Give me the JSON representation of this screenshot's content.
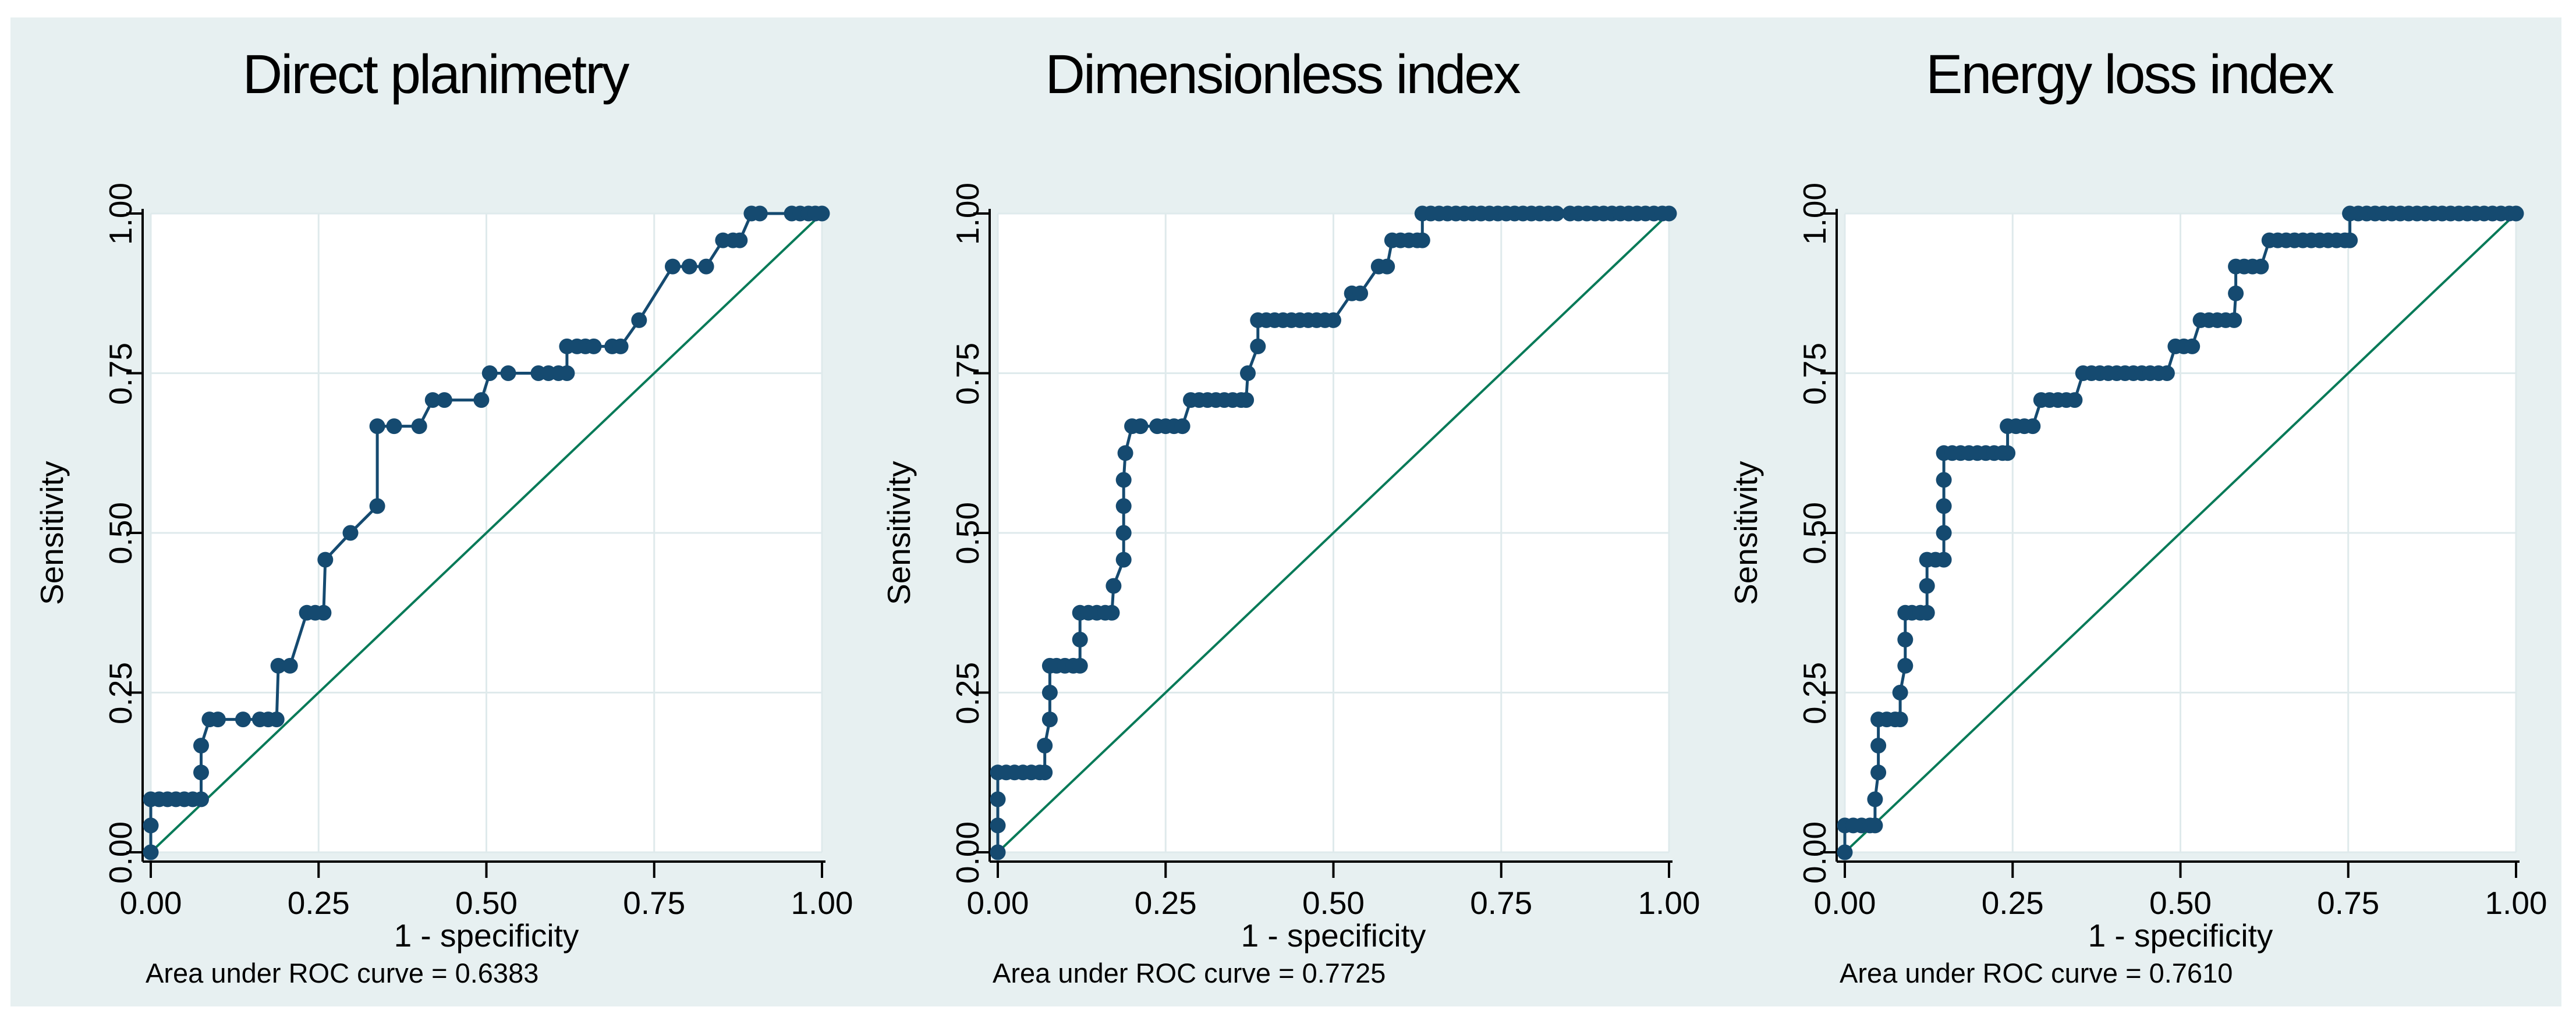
{
  "figure": {
    "page_background": "#ffffff",
    "figure_background": "#e7f0f1"
  },
  "colors": {
    "roc_curve": "#154a70",
    "reference_line": "#077a58",
    "grid": "#dfeaec",
    "axis": "#000000",
    "plot_background": "#ffffff",
    "text": "#000000"
  },
  "chart_data": [
    {
      "type": "scatter",
      "subtype": "roc-step",
      "title": "Direct planimetry",
      "xlabel": "1 - specificity",
      "ylabel": "Sensitivity",
      "auc": 0.6383,
      "auc_label": "Area under ROC curve = 0.6383",
      "xlim": [
        0,
        1
      ],
      "ylim": [
        0,
        1
      ],
      "grid": true,
      "legend": false,
      "xtick_values": [
        0,
        0.25,
        0.5,
        0.75,
        1
      ],
      "xtick_labels": [
        "0.00",
        "0.25",
        "0.50",
        "0.75",
        "1.00"
      ],
      "ytick_values": [
        0,
        0.25,
        0.5,
        0.75,
        1
      ],
      "ytick_labels": [
        "0.00",
        "0.25",
        "0.50",
        "0.75",
        "1.00"
      ],
      "reference_line": [
        [
          0,
          0
        ],
        [
          1,
          1
        ]
      ],
      "points": [
        [
          0,
          0
        ],
        [
          0,
          0.042
        ],
        [
          0,
          0.083
        ],
        [
          0.0125,
          0.083
        ],
        [
          0.025,
          0.083
        ],
        [
          0.0375,
          0.083
        ],
        [
          0.05,
          0.083
        ],
        [
          0.0625,
          0.083
        ],
        [
          0.075,
          0.083
        ],
        [
          0.075,
          0.125
        ],
        [
          0.075,
          0.167
        ],
        [
          0.0875,
          0.208
        ],
        [
          0.1,
          0.208
        ],
        [
          0.1375,
          0.208
        ],
        [
          0.1625,
          0.208
        ],
        [
          0.175,
          0.208
        ],
        [
          0.1875,
          0.208
        ],
        [
          0.19,
          0.292
        ],
        [
          0.2075,
          0.292
        ],
        [
          0.2325,
          0.375
        ],
        [
          0.245,
          0.375
        ],
        [
          0.2575,
          0.375
        ],
        [
          0.26,
          0.458
        ],
        [
          0.2975,
          0.5
        ],
        [
          0.3375,
          0.542
        ],
        [
          0.3375,
          0.667
        ],
        [
          0.3625,
          0.667
        ],
        [
          0.4,
          0.667
        ],
        [
          0.42,
          0.708
        ],
        [
          0.4375,
          0.708
        ],
        [
          0.4925,
          0.708
        ],
        [
          0.505,
          0.75
        ],
        [
          0.5325,
          0.75
        ],
        [
          0.5775,
          0.75
        ],
        [
          0.5925,
          0.75
        ],
        [
          0.6075,
          0.75
        ],
        [
          0.62,
          0.75
        ],
        [
          0.62,
          0.792
        ],
        [
          0.635,
          0.792
        ],
        [
          0.6475,
          0.792
        ],
        [
          0.66,
          0.792
        ],
        [
          0.6875,
          0.792
        ],
        [
          0.7,
          0.792
        ],
        [
          0.7275,
          0.833
        ],
        [
          0.7775,
          0.917
        ],
        [
          0.8025,
          0.917
        ],
        [
          0.8275,
          0.917
        ],
        [
          0.8525,
          0.958
        ],
        [
          0.8675,
          0.958
        ],
        [
          0.8775,
          0.958
        ],
        [
          0.895,
          1
        ],
        [
          0.9075,
          1
        ],
        [
          0.955,
          1
        ],
        [
          0.9675,
          1
        ],
        [
          0.98,
          1
        ],
        [
          0.99,
          1
        ],
        [
          1,
          1
        ]
      ]
    },
    {
      "type": "scatter",
      "subtype": "roc-step",
      "title": "Dimensionless index",
      "xlabel": "1 - specificity",
      "ylabel": "Sensitivity",
      "auc": 0.7725,
      "auc_label": "Area under ROC curve = 0.7725",
      "xlim": [
        0,
        1
      ],
      "ylim": [
        0,
        1
      ],
      "grid": true,
      "legend": false,
      "xtick_values": [
        0,
        0.25,
        0.5,
        0.75,
        1
      ],
      "xtick_labels": [
        "0.00",
        "0.25",
        "0.50",
        "0.75",
        "1.00"
      ],
      "ytick_values": [
        0,
        0.25,
        0.5,
        0.75,
        1
      ],
      "ytick_labels": [
        "0.00",
        "0.25",
        "0.50",
        "0.75",
        "1.00"
      ],
      "reference_line": [
        [
          0,
          0
        ],
        [
          1,
          1
        ]
      ],
      "points": [
        [
          0,
          0
        ],
        [
          0,
          0.042
        ],
        [
          0,
          0.083
        ],
        [
          0,
          0.125
        ],
        [
          0.0125,
          0.125
        ],
        [
          0.025,
          0.125
        ],
        [
          0.0375,
          0.125
        ],
        [
          0.05,
          0.125
        ],
        [
          0.0625,
          0.125
        ],
        [
          0.07,
          0.125
        ],
        [
          0.07,
          0.167
        ],
        [
          0.0775,
          0.208
        ],
        [
          0.0775,
          0.25
        ],
        [
          0.0775,
          0.292
        ],
        [
          0.0875,
          0.292
        ],
        [
          0.1,
          0.292
        ],
        [
          0.1125,
          0.292
        ],
        [
          0.1225,
          0.292
        ],
        [
          0.1225,
          0.333
        ],
        [
          0.1225,
          0.375
        ],
        [
          0.135,
          0.375
        ],
        [
          0.1475,
          0.375
        ],
        [
          0.16,
          0.375
        ],
        [
          0.17,
          0.375
        ],
        [
          0.1725,
          0.417
        ],
        [
          0.1875,
          0.458
        ],
        [
          0.1875,
          0.5
        ],
        [
          0.1875,
          0.542
        ],
        [
          0.1875,
          0.583
        ],
        [
          0.19,
          0.625
        ],
        [
          0.2,
          0.667
        ],
        [
          0.2125,
          0.667
        ],
        [
          0.2375,
          0.667
        ],
        [
          0.25,
          0.667
        ],
        [
          0.2625,
          0.667
        ],
        [
          0.275,
          0.667
        ],
        [
          0.2875,
          0.708
        ],
        [
          0.3,
          0.708
        ],
        [
          0.3125,
          0.708
        ],
        [
          0.325,
          0.708
        ],
        [
          0.3375,
          0.708
        ],
        [
          0.35,
          0.708
        ],
        [
          0.3625,
          0.708
        ],
        [
          0.37,
          0.708
        ],
        [
          0.3725,
          0.75
        ],
        [
          0.3875,
          0.792
        ],
        [
          0.3875,
          0.833
        ],
        [
          0.4,
          0.833
        ],
        [
          0.4125,
          0.833
        ],
        [
          0.425,
          0.833
        ],
        [
          0.4375,
          0.833
        ],
        [
          0.45,
          0.833
        ],
        [
          0.4625,
          0.833
        ],
        [
          0.475,
          0.833
        ],
        [
          0.4875,
          0.833
        ],
        [
          0.5,
          0.833
        ],
        [
          0.5275,
          0.875
        ],
        [
          0.54,
          0.875
        ],
        [
          0.5675,
          0.917
        ],
        [
          0.58,
          0.917
        ],
        [
          0.5875,
          0.958
        ],
        [
          0.6,
          0.958
        ],
        [
          0.6125,
          0.958
        ],
        [
          0.625,
          0.958
        ],
        [
          0.6325,
          0.958
        ],
        [
          0.6325,
          1
        ],
        [
          0.645,
          1
        ],
        [
          0.6575,
          1
        ],
        [
          0.67,
          1
        ],
        [
          0.6825,
          1
        ],
        [
          0.695,
          1
        ],
        [
          0.7075,
          1
        ],
        [
          0.72,
          1
        ],
        [
          0.7325,
          1
        ],
        [
          0.745,
          1
        ],
        [
          0.7575,
          1
        ],
        [
          0.77,
          1
        ],
        [
          0.7825,
          1
        ],
        [
          0.795,
          1
        ],
        [
          0.8075,
          1
        ],
        [
          0.82,
          1
        ],
        [
          0.8325,
          1
        ],
        [
          0.8525,
          1
        ],
        [
          0.865,
          1
        ],
        [
          0.8775,
          1
        ],
        [
          0.89,
          1
        ],
        [
          0.9025,
          1
        ],
        [
          0.915,
          1
        ],
        [
          0.9275,
          1
        ],
        [
          0.94,
          1
        ],
        [
          0.9525,
          1
        ],
        [
          0.965,
          1
        ],
        [
          0.9775,
          1
        ],
        [
          0.99,
          1
        ],
        [
          1,
          1
        ]
      ]
    },
    {
      "type": "scatter",
      "subtype": "roc-step",
      "title": "Energy loss index",
      "xlabel": "1 - specificity",
      "ylabel": "Sensitivity",
      "auc": 0.761,
      "auc_label": "Area under ROC curve = 0.7610",
      "xlim": [
        0,
        1
      ],
      "ylim": [
        0,
        1
      ],
      "grid": true,
      "legend": false,
      "xtick_values": [
        0,
        0.25,
        0.5,
        0.75,
        1
      ],
      "xtick_labels": [
        "0.00",
        "0.25",
        "0.50",
        "0.75",
        "1.00"
      ],
      "ytick_values": [
        0,
        0.25,
        0.5,
        0.75,
        1
      ],
      "ytick_labels": [
        "0.00",
        "0.25",
        "0.50",
        "0.75",
        "1.00"
      ],
      "reference_line": [
        [
          0,
          0
        ],
        [
          1,
          1
        ]
      ],
      "points": [
        [
          0,
          0
        ],
        [
          0,
          0.042
        ],
        [
          0.0125,
          0.042
        ],
        [
          0.025,
          0.042
        ],
        [
          0.0375,
          0.042
        ],
        [
          0.045,
          0.042
        ],
        [
          0.045,
          0.083
        ],
        [
          0.05,
          0.125
        ],
        [
          0.05,
          0.167
        ],
        [
          0.05,
          0.208
        ],
        [
          0.0625,
          0.208
        ],
        [
          0.075,
          0.208
        ],
        [
          0.0825,
          0.208
        ],
        [
          0.0825,
          0.25
        ],
        [
          0.09,
          0.292
        ],
        [
          0.09,
          0.333
        ],
        [
          0.09,
          0.375
        ],
        [
          0.1,
          0.375
        ],
        [
          0.1125,
          0.375
        ],
        [
          0.1225,
          0.375
        ],
        [
          0.1225,
          0.417
        ],
        [
          0.1225,
          0.458
        ],
        [
          0.135,
          0.458
        ],
        [
          0.1475,
          0.458
        ],
        [
          0.1475,
          0.5
        ],
        [
          0.1475,
          0.542
        ],
        [
          0.1475,
          0.583
        ],
        [
          0.1475,
          0.625
        ],
        [
          0.16,
          0.625
        ],
        [
          0.1725,
          0.625
        ],
        [
          0.185,
          0.625
        ],
        [
          0.1975,
          0.625
        ],
        [
          0.21,
          0.625
        ],
        [
          0.2225,
          0.625
        ],
        [
          0.235,
          0.625
        ],
        [
          0.2425,
          0.625
        ],
        [
          0.2425,
          0.667
        ],
        [
          0.255,
          0.667
        ],
        [
          0.2675,
          0.667
        ],
        [
          0.28,
          0.667
        ],
        [
          0.2925,
          0.708
        ],
        [
          0.305,
          0.708
        ],
        [
          0.3175,
          0.708
        ],
        [
          0.33,
          0.708
        ],
        [
          0.3425,
          0.708
        ],
        [
          0.355,
          0.75
        ],
        [
          0.3675,
          0.75
        ],
        [
          0.38,
          0.75
        ],
        [
          0.3925,
          0.75
        ],
        [
          0.405,
          0.75
        ],
        [
          0.4175,
          0.75
        ],
        [
          0.43,
          0.75
        ],
        [
          0.4425,
          0.75
        ],
        [
          0.455,
          0.75
        ],
        [
          0.4675,
          0.75
        ],
        [
          0.48,
          0.75
        ],
        [
          0.4925,
          0.792
        ],
        [
          0.505,
          0.792
        ],
        [
          0.5175,
          0.792
        ],
        [
          0.53,
          0.833
        ],
        [
          0.5425,
          0.833
        ],
        [
          0.555,
          0.833
        ],
        [
          0.5675,
          0.833
        ],
        [
          0.58,
          0.833
        ],
        [
          0.5825,
          0.875
        ],
        [
          0.5825,
          0.917
        ],
        [
          0.595,
          0.917
        ],
        [
          0.6075,
          0.917
        ],
        [
          0.62,
          0.917
        ],
        [
          0.6325,
          0.958
        ],
        [
          0.645,
          0.958
        ],
        [
          0.6575,
          0.958
        ],
        [
          0.67,
          0.958
        ],
        [
          0.6825,
          0.958
        ],
        [
          0.695,
          0.958
        ],
        [
          0.7075,
          0.958
        ],
        [
          0.72,
          0.958
        ],
        [
          0.7325,
          0.958
        ],
        [
          0.745,
          0.958
        ],
        [
          0.7525,
          0.958
        ],
        [
          0.7525,
          1
        ],
        [
          0.765,
          1
        ],
        [
          0.7775,
          1
        ],
        [
          0.79,
          1
        ],
        [
          0.8025,
          1
        ],
        [
          0.815,
          1
        ],
        [
          0.8275,
          1
        ],
        [
          0.84,
          1
        ],
        [
          0.8525,
          1
        ],
        [
          0.865,
          1
        ],
        [
          0.8775,
          1
        ],
        [
          0.89,
          1
        ],
        [
          0.9025,
          1
        ],
        [
          0.915,
          1
        ],
        [
          0.9275,
          1
        ],
        [
          0.94,
          1
        ],
        [
          0.9525,
          1
        ],
        [
          0.965,
          1
        ],
        [
          0.9775,
          1
        ],
        [
          0.99,
          1
        ],
        [
          1,
          1
        ]
      ]
    }
  ]
}
